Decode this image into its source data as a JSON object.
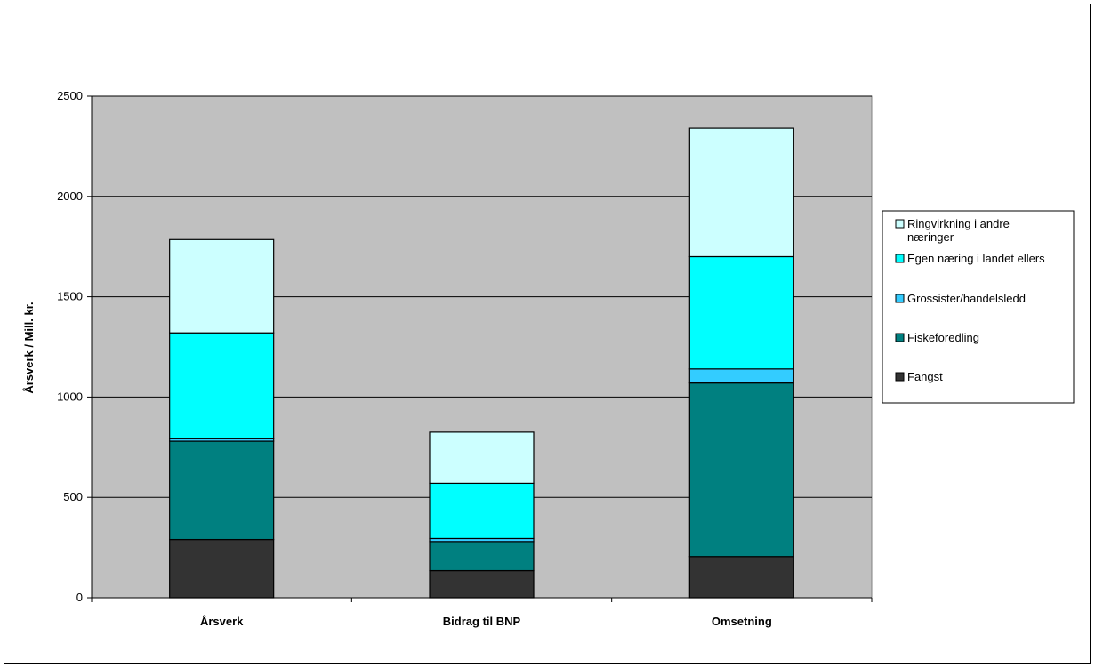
{
  "chart_data": {
    "type": "bar",
    "stacked": true,
    "title": "",
    "xlabel": "",
    "ylabel": "Årsverk / Mill. kr.",
    "ylim": [
      0,
      2500
    ],
    "yticks": [
      "0",
      "500",
      "1000",
      "1500",
      "2000",
      "2500"
    ],
    "grid": true,
    "legend_position": "right",
    "categories": [
      "Årsverk",
      "Bidrag til BNP",
      "Omsetning"
    ],
    "series": [
      {
        "name": "Fangst",
        "color": "#333333",
        "values": [
          290,
          135,
          205
        ]
      },
      {
        "name": "Fiskeforedling",
        "color": "#008080",
        "values": [
          490,
          145,
          865
        ]
      },
      {
        "name": "Grossister/handelsledd",
        "color": "#33CCFF",
        "values": [
          15,
          15,
          70
        ]
      },
      {
        "name": "Egen næring i landet ellers",
        "color": "#00FFFF",
        "values": [
          525,
          275,
          560
        ]
      },
      {
        "name": "Ringvirkning i andre næringer",
        "color": "#CCFFFF",
        "values": [
          465,
          255,
          640
        ]
      }
    ],
    "legend_labels": [
      [
        "Ringvirkning i andre",
        "næringer"
      ],
      [
        "Egen næring i landet ellers"
      ],
      [
        "Grossister/handelsledd"
      ],
      [
        "Fiskeforedling"
      ],
      [
        "Fangst"
      ]
    ],
    "plot_background": "#C0C0C0"
  }
}
